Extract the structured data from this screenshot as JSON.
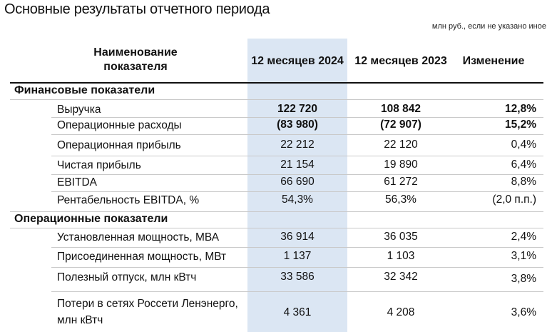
{
  "title": "Основные результаты отчетного периода",
  "units_note": "млн руб., если не указано иное",
  "headers": {
    "name_line1": "Наименование",
    "name_line2": "показателя",
    "col_2024": "12 месяцев 2024",
    "col_2023": "12 месяцев 2023",
    "col_change": "Изменение"
  },
  "sections": [
    {
      "title": "Финансовые показатели",
      "rows": [
        {
          "label": "Выручка",
          "v2024": "122 720",
          "v2023": "108 842",
          "change": "12,8%"
        },
        {
          "label": "Операционные расходы",
          "v2024": "(83 980)",
          "v2023": "(72 907)",
          "change": "15,2%"
        },
        {
          "label": "Операционная прибыль",
          "v2024": "22 212",
          "v2023": "22 120",
          "change": "0,4%"
        },
        {
          "label": "Чистая прибыль",
          "v2024": "21 154",
          "v2023": "19 890",
          "change": "6,4%"
        },
        {
          "label": "EBITDA",
          "v2024": "66 690",
          "v2023": "61 272",
          "change": "8,8%"
        },
        {
          "label": "Рентабельность EBITDA, %",
          "v2024": "54,3%",
          "v2023": "56,3%",
          "change": "(2,0 п.п.)"
        }
      ]
    },
    {
      "title": "Операционные показатели",
      "rows": [
        {
          "label": "Установленная мощность, МВА",
          "v2024": "36 914",
          "v2023": "36 035",
          "change": "2,4%"
        },
        {
          "label": "Присоединенная мощность, МВт",
          "v2024": "1 137",
          "v2023": "1 103",
          "change": "3,1%"
        },
        {
          "label": "Полезный отпуск, млн кВтч",
          "v2024": "33 586",
          "v2023": "32 342",
          "change": "3,8%"
        },
        {
          "label_line1": "Потери в сетях Россети Ленэнерго,",
          "label_line2": "млн кВтч",
          "v2024": "4 361",
          "v2023": "4 208",
          "change": "3,6%"
        }
      ]
    }
  ]
}
